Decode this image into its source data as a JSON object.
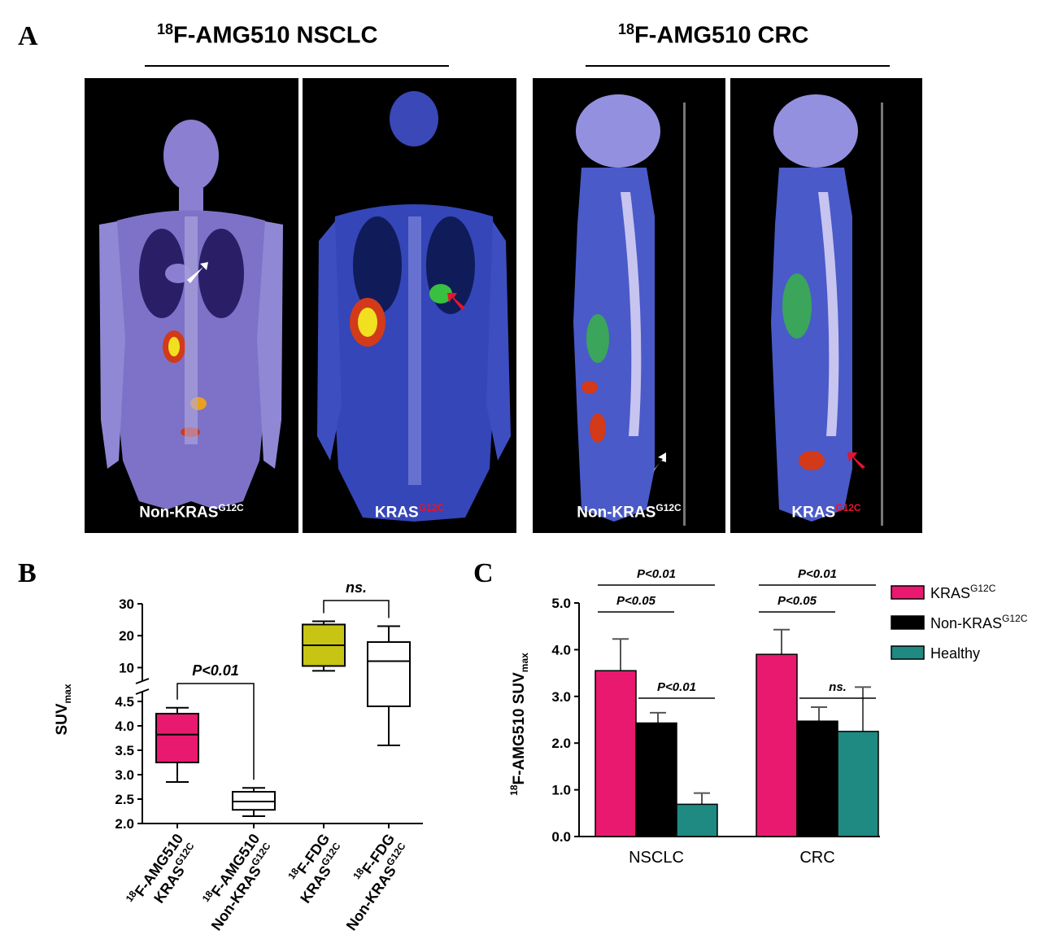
{
  "panelA": {
    "letter": "A",
    "groups": [
      {
        "sup": "18",
        "title": "F-AMG510 NSCLC"
      },
      {
        "sup": "18",
        "title": "F-AMG510 CRC"
      }
    ],
    "scans": [
      {
        "label": "Non-KRAS",
        "sup": "G12C",
        "sup_red": false,
        "arrow": "white"
      },
      {
        "label": "KRAS",
        "sup": "G12C",
        "sup_red": true,
        "arrow": "red"
      },
      {
        "label": "Non-KRAS",
        "sup": "G12C",
        "sup_red": false,
        "arrow": "white"
      },
      {
        "label": "KRAS",
        "sup": "G12C",
        "sup_red": true,
        "arrow": "red"
      }
    ]
  },
  "panelB": {
    "letter": "B"
  },
  "panelC": {
    "letter": "C"
  },
  "chart_data": [
    {
      "type": "box",
      "panel": "B",
      "ylabel": "SUV",
      "ylabel_sub": "max",
      "y_axis": "broken",
      "ylim_lower": [
        2.0,
        4.5
      ],
      "ylim_upper": [
        5,
        30
      ],
      "yticks_lower": [
        "2.0",
        "2.5",
        "3.0",
        "3.5",
        "4.0",
        "4.5"
      ],
      "yticks_upper": [
        "10",
        "20",
        "30"
      ],
      "categories": [
        {
          "line1_sup": "18",
          "line1": "F-AMG510",
          "line2": "KRAS",
          "line2_sup": "G12C"
        },
        {
          "line1_sup": "18",
          "line1": "F-AMG510",
          "line2": "Non-KRAS",
          "line2_sup": "G12C"
        },
        {
          "line1_sup": "18",
          "line1": "F-FDG",
          "line2": "KRAS",
          "line2_sup": "G12C"
        },
        {
          "line1_sup": "18",
          "line1": "F-FDG",
          "line2": "Non-KRAS",
          "line2_sup": "G12C"
        }
      ],
      "boxes": [
        {
          "min": 2.85,
          "q1": 3.25,
          "median": 3.82,
          "q3": 4.25,
          "max": 4.37,
          "color": "#e8196f"
        },
        {
          "min": 2.15,
          "q1": 2.28,
          "median": 2.45,
          "q3": 2.65,
          "max": 2.73,
          "color": "#ffffff"
        },
        {
          "min": 9,
          "q1": 10.5,
          "median": 17,
          "q3": 23.5,
          "max": 24.5,
          "color": "#c8c414"
        },
        {
          "min": 3.6,
          "q1": 4.4,
          "median": 12,
          "q3": 18,
          "max": 23,
          "color": "#ffffff"
        }
      ],
      "annotations": [
        {
          "text": "P<0.01",
          "from": 0,
          "to": 1
        },
        {
          "text": "ns.",
          "from": 2,
          "to": 3
        }
      ]
    },
    {
      "type": "bar",
      "panel": "C",
      "categories": [
        "NSCLC",
        "CRC"
      ],
      "ylabel_sup": "18",
      "ylabel": "F-AMG510 SUV",
      "ylabel_sub": "max",
      "ylim": [
        0,
        5
      ],
      "yticks": [
        "0.0",
        "1.0",
        "2.0",
        "3.0",
        "4.0",
        "5.0"
      ],
      "series": [
        {
          "name": "KRAS",
          "name_sup": "G12C",
          "color": "#e8196f",
          "values": [
            3.55,
            3.9
          ],
          "errors": [
            0.68,
            0.53
          ]
        },
        {
          "name": "Non-KRAS",
          "name_sup": "G12C",
          "color": "#000000",
          "values": [
            2.43,
            2.47
          ],
          "errors": [
            0.22,
            0.3
          ]
        },
        {
          "name": "Healthy",
          "name_sup": "",
          "color": "#1e8a82",
          "values": [
            0.69,
            2.25
          ],
          "errors": [
            0.24,
            0.95
          ]
        }
      ],
      "annotations": [
        {
          "text": "P<0.01",
          "category": 0,
          "from": 0,
          "to": 2
        },
        {
          "text": "P<0.05",
          "category": 0,
          "from": 0,
          "to": 1
        },
        {
          "text": "P<0.01",
          "category": 0,
          "from": 1,
          "to": 2
        },
        {
          "text": "P<0.01",
          "category": 1,
          "from": 0,
          "to": 2
        },
        {
          "text": "P<0.05",
          "category": 1,
          "from": 0,
          "to": 1
        },
        {
          "text": "ns.",
          "category": 1,
          "from": 1,
          "to": 2
        }
      ]
    }
  ]
}
